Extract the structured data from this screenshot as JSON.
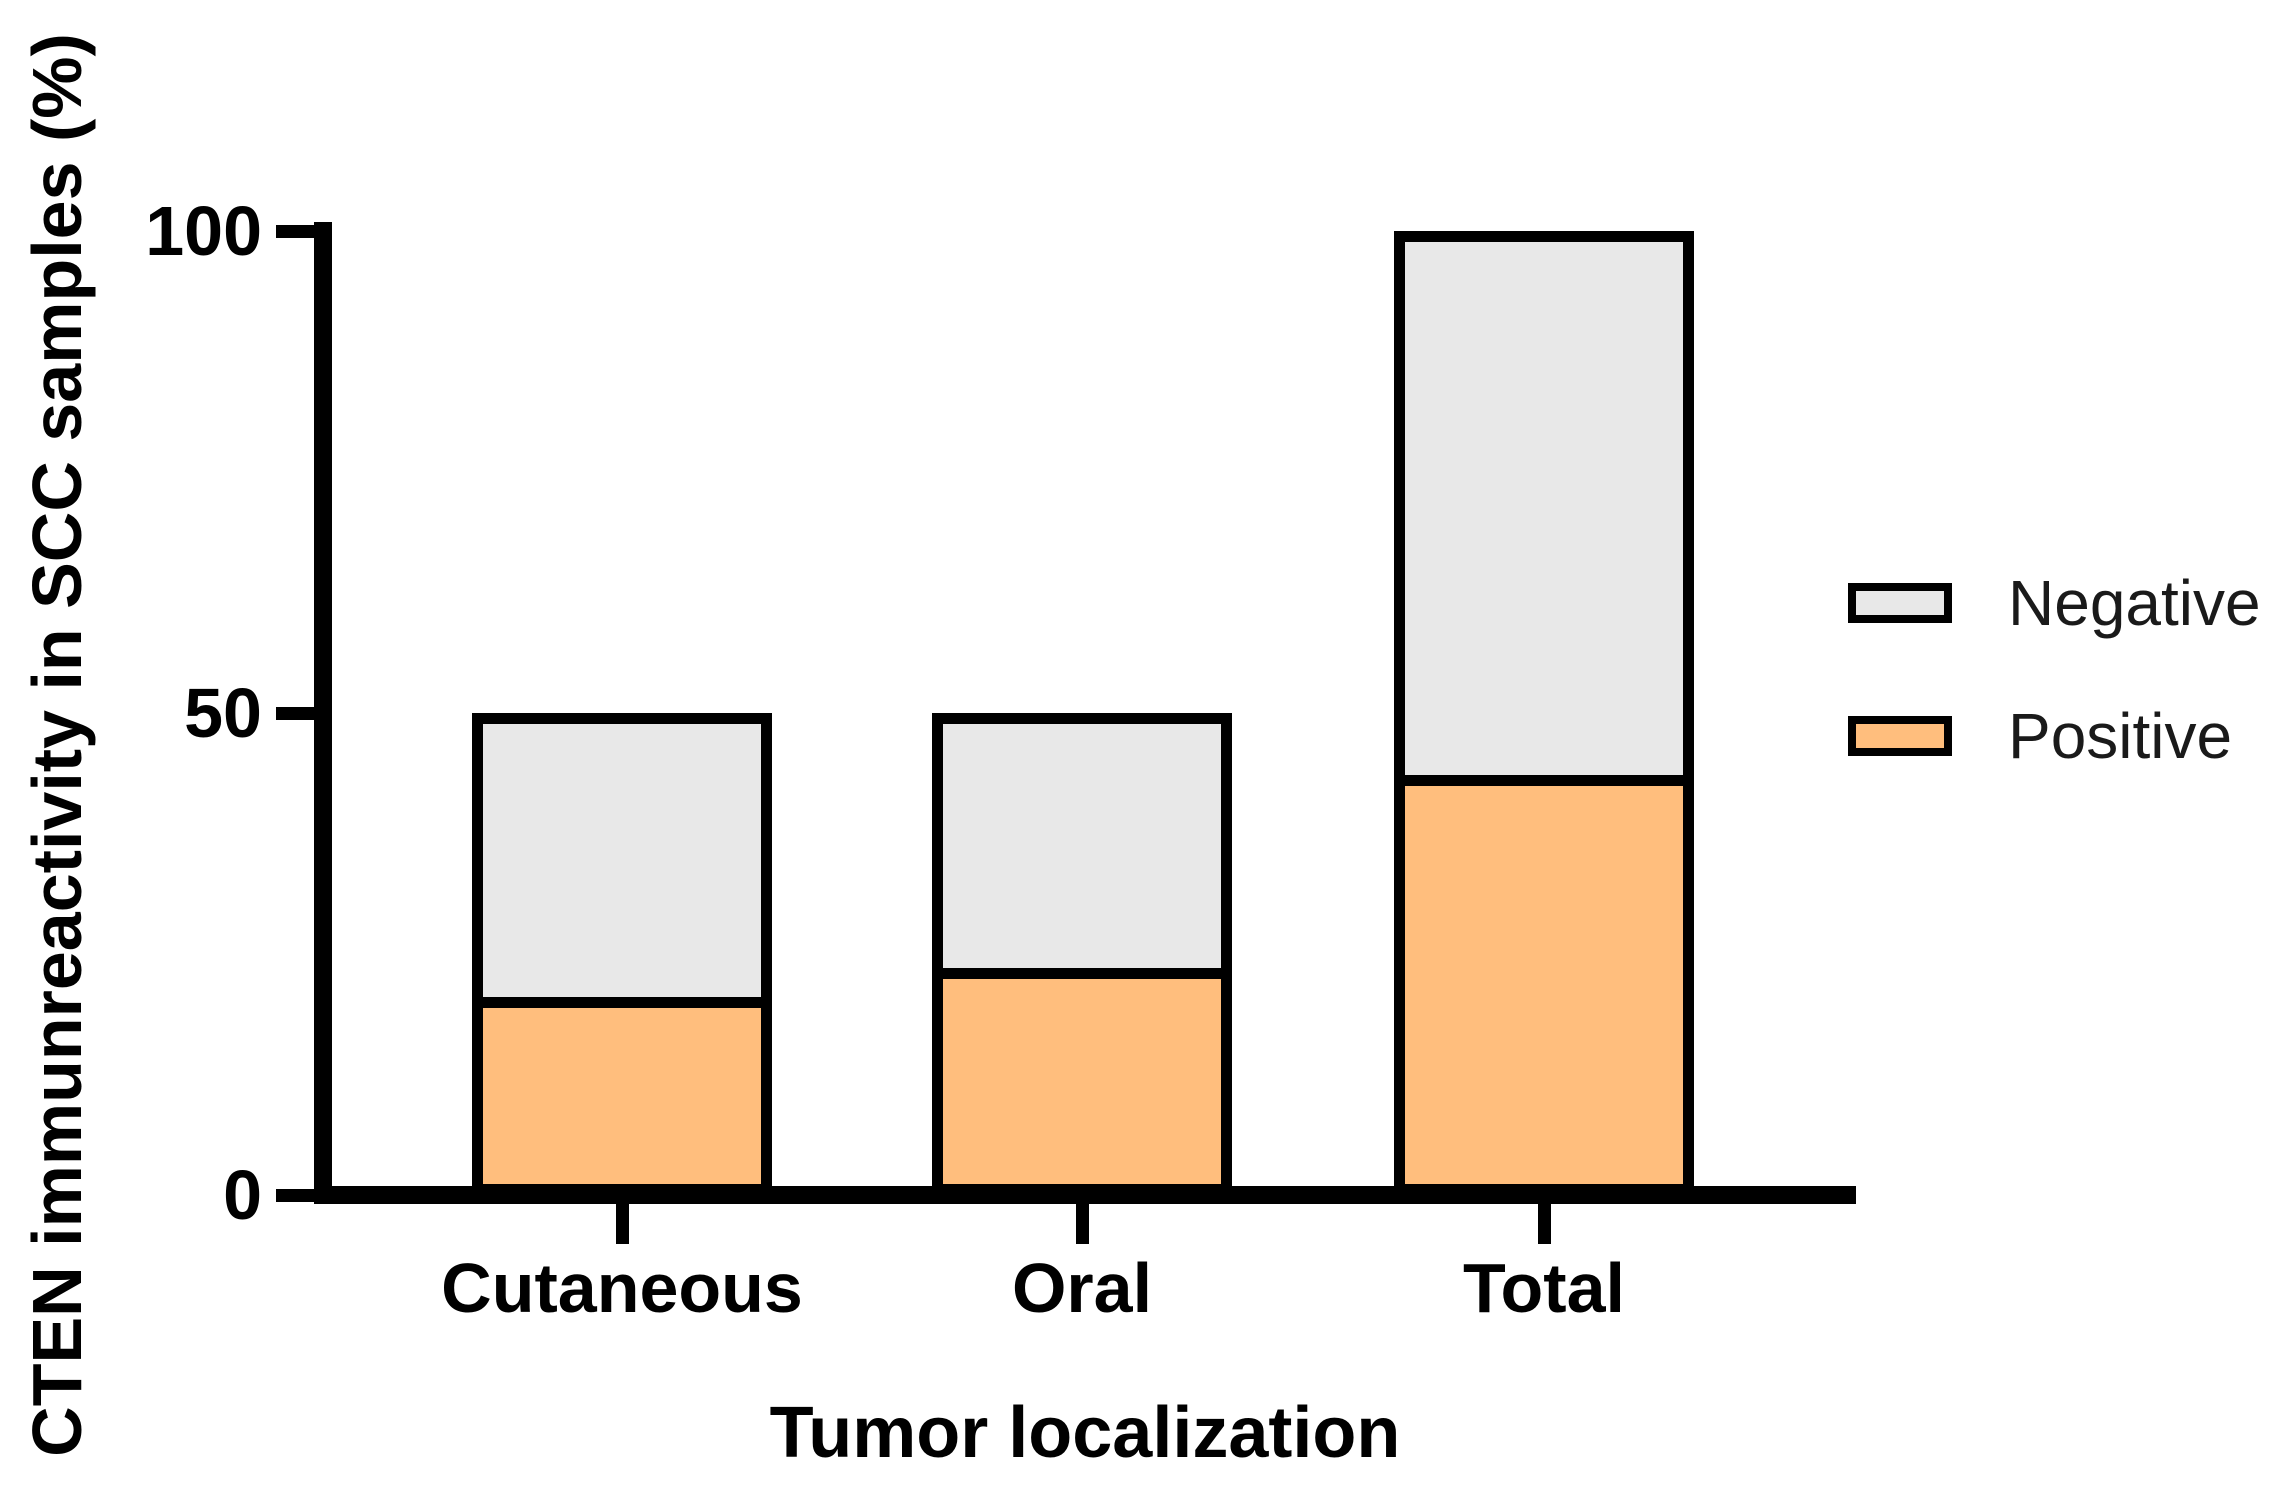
{
  "chart_data": {
    "type": "bar",
    "stacked": true,
    "categories": [
      "Cutaneous",
      "Oral",
      "Total"
    ],
    "series": [
      {
        "name": "Positive",
        "color": "#FFBE7D",
        "values": [
          20,
          23,
          43
        ]
      },
      {
        "name": "Negative",
        "color": "#E8E8E8",
        "values": [
          30,
          27,
          57
        ]
      }
    ],
    "stack_totals": [
      50,
      50,
      100
    ],
    "title": "",
    "xlabel": "Tumor localization",
    "ylabel": "CTEN immunreactivity in SCC samples (%)",
    "ylim": [
      0,
      100
    ],
    "yticks": [
      0,
      50,
      100
    ],
    "ytick_labels": [
      "0",
      "50",
      "100"
    ],
    "grid": false,
    "legend_position": "right",
    "legend_order_top_to_bottom": [
      "Negative",
      "Positive"
    ],
    "axis_color": "#000000",
    "background_color": "#FFFFFF"
  },
  "legend": {
    "items": [
      {
        "label": "Negative",
        "color": "#E8E8E8"
      },
      {
        "label": "Positive",
        "color": "#FFBE7D"
      }
    ]
  },
  "titles": {
    "x_axis": "Tumor localization",
    "y_axis": "CTEN immunreactivity in SCC samples (%)"
  }
}
